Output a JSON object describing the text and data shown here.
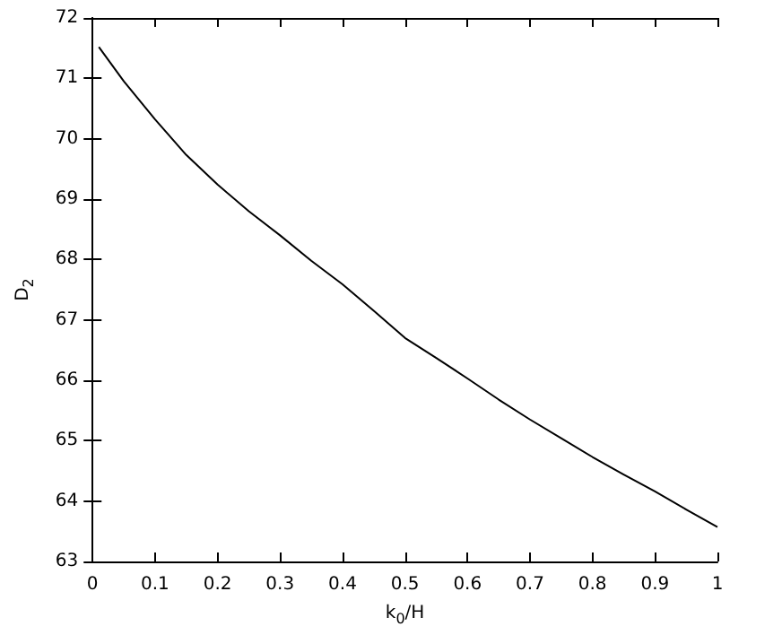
{
  "chart_data": {
    "type": "line",
    "xlabel": "k$_{0}$/H",
    "ylabel": "D$_{2}$",
    "x": [
      0.01,
      0.05,
      0.1,
      0.15,
      0.2,
      0.25,
      0.3,
      0.35,
      0.4,
      0.45,
      0.5,
      0.55,
      0.6,
      0.65,
      0.7,
      0.75,
      0.8,
      0.85,
      0.9,
      0.95,
      1.0
    ],
    "series": [
      {
        "color": "#000000",
        "values": [
          71.52,
          70.95,
          70.32,
          69.73,
          69.24,
          68.8,
          68.4,
          67.98,
          67.59,
          67.15,
          66.7,
          66.37,
          66.03,
          65.68,
          65.35,
          65.04,
          64.73,
          64.44,
          64.16,
          63.86,
          63.57
        ]
      }
    ],
    "xlim": [
      0,
      1
    ],
    "xticks": [
      0,
      0.1,
      0.2,
      0.3,
      0.4,
      0.5,
      0.6,
      0.7,
      0.8,
      0.9,
      1
    ],
    "ylim": [
      63,
      72
    ],
    "yticks": [
      63,
      64,
      65,
      66,
      67,
      68,
      69,
      70,
      71,
      72
    ],
    "grid": false,
    "marker": "none",
    "line_style": "solid"
  }
}
